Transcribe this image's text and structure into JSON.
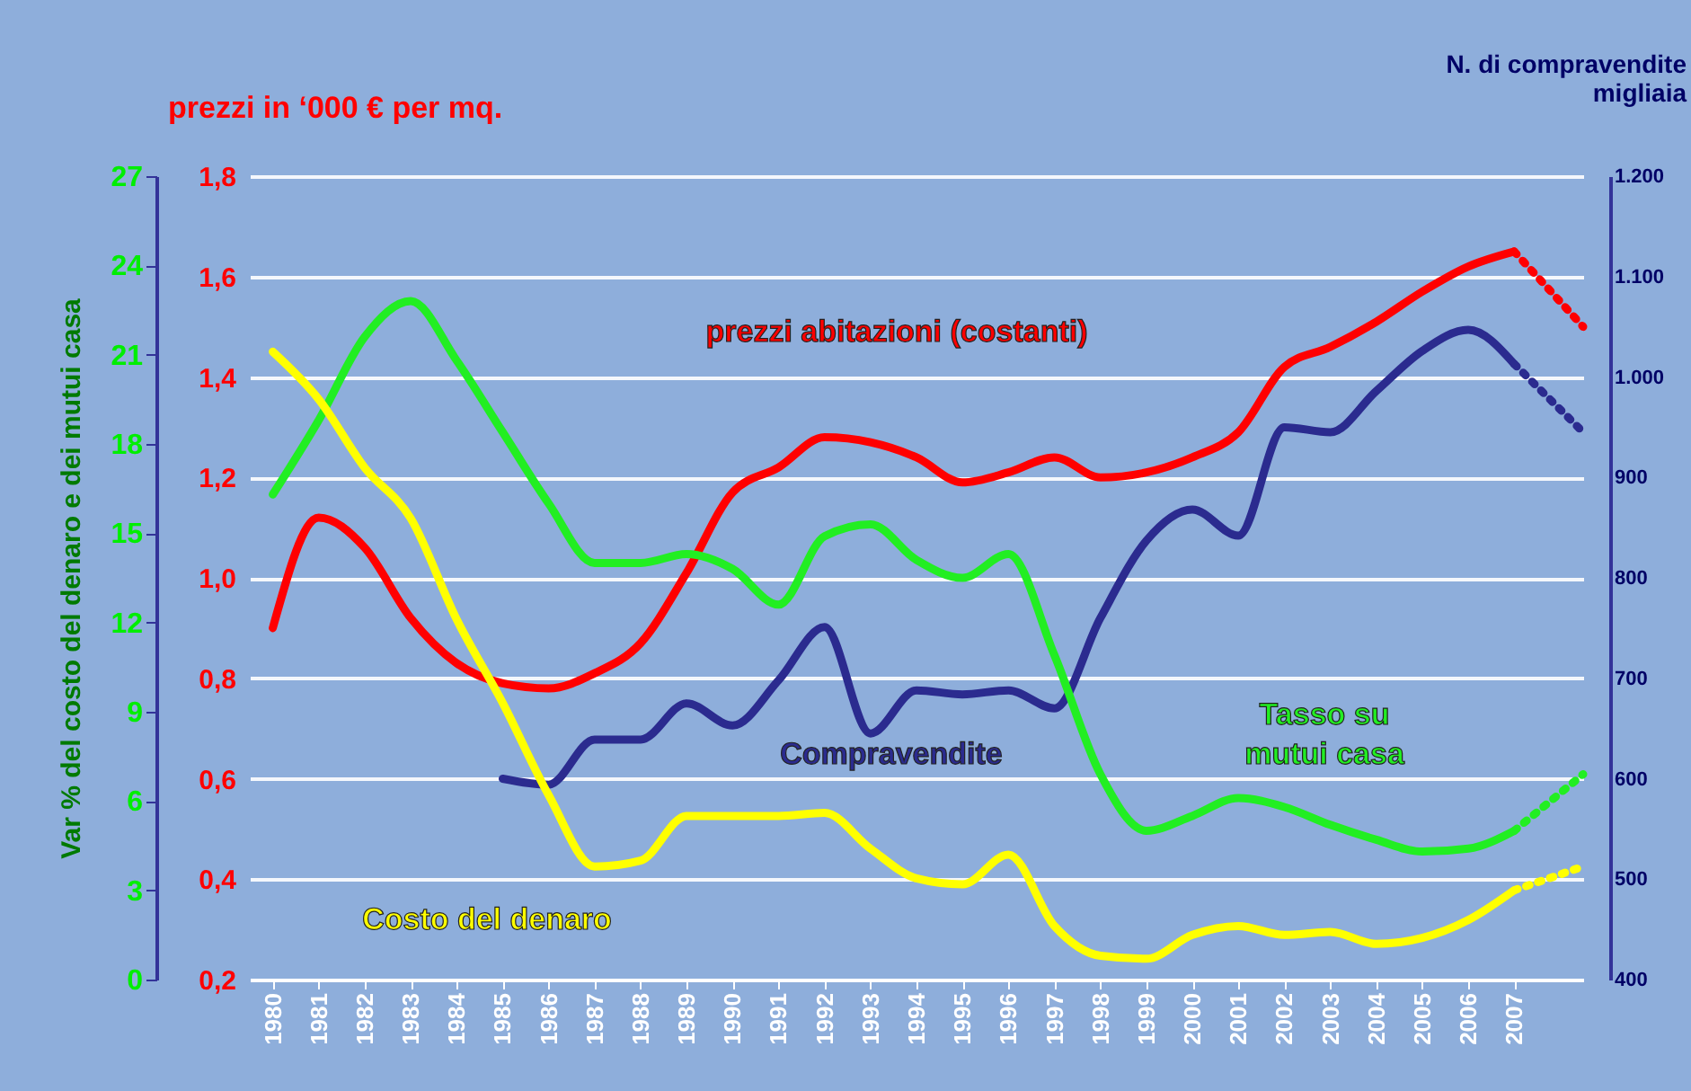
{
  "chart_data": {
    "type": "line",
    "ylabel": "prezzi in ‘000 € per mq.",
    "y2label": "N. di compravendite migliaia",
    "y3label": "Var % del costo del denaro e dei mutui casa",
    "x": [
      1980,
      1981,
      1982,
      1983,
      1984,
      1985,
      1986,
      1987,
      1988,
      1989,
      1990,
      1991,
      1992,
      1993,
      1994,
      1995,
      1996,
      1997,
      1998,
      1999,
      2000,
      2001,
      2002,
      2003,
      2004,
      2005,
      2006,
      2007,
      2008.5
    ],
    "xlim": [
      1979.5,
      2008.5
    ],
    "xticks": [
      1980,
      1981,
      1982,
      1983,
      1984,
      1985,
      1986,
      1987,
      1988,
      1989,
      1990,
      1991,
      1992,
      1993,
      1994,
      1995,
      1996,
      1997,
      1998,
      1999,
      2000,
      2001,
      2002,
      2003,
      2004,
      2005,
      2006,
      2007
    ],
    "ylim": [
      0.2,
      1.8
    ],
    "yticks": [
      {
        "value": 0.2,
        "label": "0,2"
      },
      {
        "value": 0.4,
        "label": "0,4"
      },
      {
        "value": 0.6,
        "label": "0,6"
      },
      {
        "value": 0.8,
        "label": "0,8"
      },
      {
        "value": 1.0,
        "label": "1,0"
      },
      {
        "value": 1.2,
        "label": "1,2"
      },
      {
        "value": 1.4,
        "label": "1,4"
      },
      {
        "value": 1.6,
        "label": "1,6"
      },
      {
        "value": 1.8,
        "label": "1,8"
      }
    ],
    "y2lim": [
      400,
      1200
    ],
    "y2ticks": [
      400,
      500,
      600,
      700,
      800,
      900,
      {
        "value": 1000,
        "label": "1.000"
      },
      {
        "value": 1100,
        "label": "1.100"
      },
      {
        "value": 1200,
        "label": "1.200"
      }
    ],
    "y3lim": [
      0,
      27
    ],
    "y3ticks": [
      0,
      3,
      6,
      9,
      12,
      15,
      18,
      21,
      24,
      27
    ],
    "grid": "y",
    "legend": false,
    "series": [
      {
        "name": "prezzi abitazioni (costanti)",
        "color": "#ff0000",
        "axis": "y",
        "values": [
          0.9,
          1.12,
          1.06,
          0.92,
          0.83,
          0.79,
          0.78,
          0.81,
          0.87,
          1.01,
          1.17,
          1.22,
          1.28,
          1.27,
          1.24,
          1.19,
          1.21,
          1.24,
          1.2,
          1.21,
          1.24,
          1.29,
          1.42,
          1.46,
          1.51,
          1.57,
          1.62,
          1.65,
          null
        ]
      },
      {
        "name": "Compravendite",
        "color": "#2b2b8f",
        "axis": "y2",
        "values": [
          null,
          null,
          null,
          null,
          null,
          600,
          594,
          639,
          639,
          675,
          653,
          698,
          751,
          645,
          688,
          684,
          688,
          670,
          760,
          837,
          868,
          842,
          950,
          945,
          986,
          1026,
          1047,
          1013,
          null
        ]
      },
      {
        "name": "Tasso su mutui casa",
        "color": "#22ee22",
        "axis": "y3",
        "values": [
          16.3,
          18.8,
          21.6,
          22.8,
          20.8,
          18.4,
          16,
          14,
          14,
          14.3,
          13.8,
          12.6,
          14.9,
          15.3,
          14.1,
          13.5,
          14.3,
          10.9,
          6.9,
          5,
          5.5,
          6.1,
          5.8,
          5.2,
          4.7,
          4.3,
          4.4,
          5,
          null
        ]
      },
      {
        "name": "Costo del denaro",
        "color": "#ffff00",
        "axis": "y3",
        "values": [
          21.1,
          19.5,
          17.2,
          15.5,
          12.1,
          9.3,
          6.2,
          3.8,
          4,
          5.5,
          5.5,
          5.5,
          5.6,
          4.4,
          3.4,
          3.2,
          4.2,
          1.8,
          0.8,
          0.7,
          1.5,
          1.8,
          1.5,
          1.6,
          1.2,
          1.4,
          2,
          3,
          null
        ]
      },
      {
        "color": "#ff0000",
        "axis": "y",
        "line_style": "dotted",
        "values": [
          null,
          null,
          null,
          null,
          null,
          null,
          null,
          null,
          null,
          null,
          null,
          null,
          null,
          null,
          null,
          null,
          null,
          null,
          null,
          null,
          null,
          null,
          null,
          null,
          null,
          null,
          null,
          1.65,
          1.5
        ]
      },
      {
        "color": "#2b2b8f",
        "axis": "y2",
        "line_style": "dotted",
        "values": [
          null,
          null,
          null,
          null,
          null,
          null,
          null,
          null,
          null,
          null,
          null,
          null,
          null,
          null,
          null,
          null,
          null,
          null,
          null,
          null,
          null,
          null,
          null,
          null,
          null,
          null,
          null,
          1013,
          945
        ]
      },
      {
        "color": "#22ee22",
        "axis": "y3",
        "line_style": "dotted",
        "values": [
          null,
          null,
          null,
          null,
          null,
          null,
          null,
          null,
          null,
          null,
          null,
          null,
          null,
          null,
          null,
          null,
          null,
          null,
          null,
          null,
          null,
          null,
          null,
          null,
          null,
          null,
          null,
          5,
          6.9
        ]
      },
      {
        "color": "#ffff00",
        "axis": "y3",
        "line_style": "dotted",
        "values": [
          null,
          null,
          null,
          null,
          null,
          null,
          null,
          null,
          null,
          null,
          null,
          null,
          null,
          null,
          null,
          null,
          null,
          null,
          null,
          null,
          null,
          null,
          null,
          null,
          null,
          null,
          null,
          3,
          3.8
        ]
      }
    ]
  }
}
